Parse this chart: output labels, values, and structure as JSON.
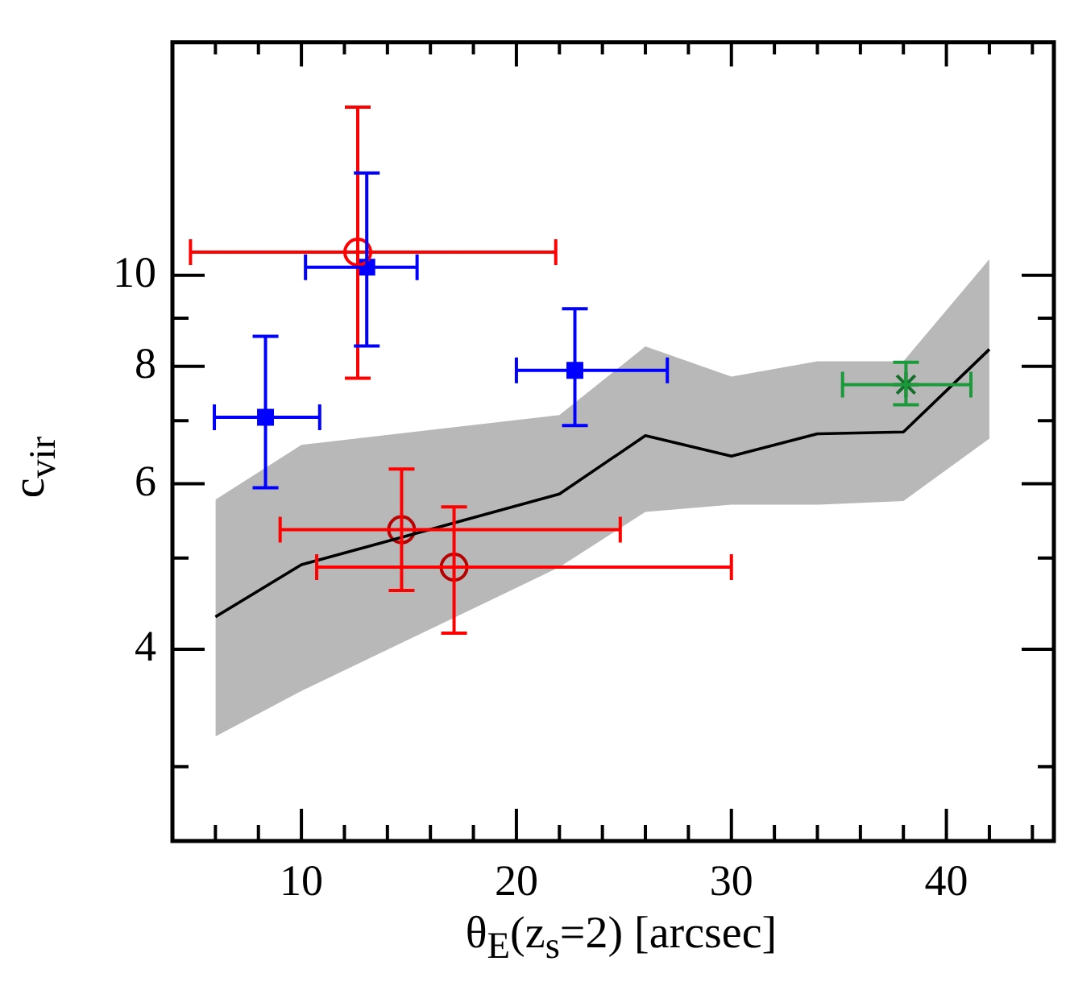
{
  "chart_data": {
    "type": "scatter",
    "xlabel": "θ$_{E}$(z$_{s}$=2) [arcsec]",
    "ylabel": "c$_{vir}$",
    "xlim": [
      4,
      45
    ],
    "ylim": [
      2.5,
      17.7
    ],
    "log": "y",
    "grid": false,
    "legend": false,
    "xticks": [
      {
        "value": 6,
        "label": null
      },
      {
        "value": 8,
        "label": null
      },
      10,
      {
        "value": 12,
        "label": null
      },
      {
        "value": 14,
        "label": null
      },
      {
        "value": 16,
        "label": null
      },
      {
        "value": 18,
        "label": null
      },
      20,
      {
        "value": 22,
        "label": null
      },
      {
        "value": 24,
        "label": null
      },
      {
        "value": 26,
        "label": null
      },
      {
        "value": 28,
        "label": null
      },
      30,
      {
        "value": 32,
        "label": null
      },
      {
        "value": 34,
        "label": null
      },
      {
        "value": 36,
        "label": null
      },
      {
        "value": 38,
        "label": null
      },
      40,
      {
        "value": 42,
        "label": null
      },
      {
        "value": 44,
        "label": null
      }
    ],
    "yticks": [
      {
        "value": 3,
        "label": null
      },
      4,
      {
        "value": 5,
        "label": null
      },
      6,
      {
        "value": 7,
        "label": null
      },
      8,
      {
        "value": 9,
        "label": null
      },
      10
    ],
    "series": [
      {
        "type": "line",
        "color": "#000000",
        "marker": "none",
        "x": [
          6,
          10,
          22,
          26,
          30,
          34,
          38,
          42
        ],
        "values": [
          4.33,
          4.92,
          5.85,
          6.75,
          6.42,
          6.78,
          6.81,
          8.34
        ],
        "lower": [
          3.23,
          3.61,
          4.89,
          5.6,
          5.7,
          5.7,
          5.75,
          6.7
        ],
        "upper": [
          5.77,
          6.6,
          7.1,
          8.4,
          7.8,
          8.1,
          8.1,
          10.4
        ]
      },
      {
        "type": "scatter",
        "color": "#ff0000",
        "marker": "circle",
        "x": [
          12.62,
          14.66,
          17.1
        ],
        "values": [
          10.58,
          5.36,
          4.89
        ],
        "errors": [
          [
            7.77,
            15.1
          ],
          [
            4.62,
            6.22
          ],
          [
            4.16,
            5.67
          ]
        ],
        "xerrors": [
          [
            4.84,
            21.83
          ],
          [
            9.01,
            24.83
          ],
          [
            10.71,
            30
          ]
        ]
      },
      {
        "type": "scatter",
        "color": "#0000ff",
        "marker": "square",
        "x": [
          8.33,
          13.04,
          22.72
        ],
        "values": [
          7.06,
          10.2,
          7.92
        ],
        "errors": [
          [
            5.94,
            8.61
          ],
          [
            8.41,
            12.85
          ],
          [
            6.92,
            9.21
          ]
        ],
        "xerrors": [
          [
            5.95,
            10.85
          ],
          [
            10.19,
            15.38
          ],
          [
            20,
            27.02
          ]
        ]
      },
      {
        "type": "scatter",
        "color": "#1a9a3a",
        "marker": "cross",
        "x": [
          38.12
        ],
        "values": [
          7.65
        ],
        "errors": [
          [
            7.28,
            8.08
          ]
        ],
        "xerrors": [
          [
            35.17,
            41.14
          ]
        ]
      }
    ]
  }
}
